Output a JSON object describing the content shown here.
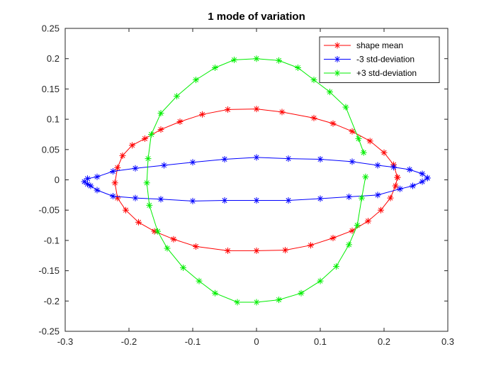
{
  "chart_data": {
    "type": "line",
    "title": "1 mode of variation",
    "xlabel": "",
    "ylabel": "",
    "xlim": [
      -0.3,
      0.3
    ],
    "ylim": [
      -0.25,
      0.25
    ],
    "x_ticks": [
      -0.3,
      -0.2,
      -0.1,
      0,
      0.1,
      0.2,
      0.3
    ],
    "x_tick_labels": [
      "-0.3",
      "-0.2",
      "-0.1",
      "0",
      "0.1",
      "0.2",
      "0.3"
    ],
    "y_ticks": [
      -0.25,
      -0.2,
      -0.15,
      -0.1,
      -0.05,
      0,
      0.05,
      0.1,
      0.15,
      0.2,
      0.25
    ],
    "y_tick_labels": [
      "-0.25",
      "-0.2",
      "-0.15",
      "-0.1",
      "-0.05",
      "0",
      "0.05",
      "0.1",
      "0.15",
      "0.2",
      "0.25"
    ],
    "grid": false,
    "legend_position": "top-right",
    "marker": "asterisk",
    "series": [
      {
        "name": "shape mean",
        "color": "#ff0000",
        "points": [
          [
            0.221,
            0.004
          ],
          [
            0.215,
            0.025
          ],
          [
            0.2,
            0.045
          ],
          [
            0.178,
            0.064
          ],
          [
            0.15,
            0.08
          ],
          [
            0.12,
            0.093
          ],
          [
            0.09,
            0.102
          ],
          [
            0.04,
            0.112
          ],
          [
            0,
            0.117
          ],
          [
            -0.045,
            0.116
          ],
          [
            -0.085,
            0.108
          ],
          [
            -0.12,
            0.096
          ],
          [
            -0.15,
            0.083
          ],
          [
            -0.175,
            0.068
          ],
          [
            -0.195,
            0.057
          ],
          [
            -0.21,
            0.04
          ],
          [
            -0.218,
            0.02
          ],
          [
            -0.222,
            -0.005
          ],
          [
            -0.218,
            -0.03
          ],
          [
            -0.205,
            -0.05
          ],
          [
            -0.185,
            -0.07
          ],
          [
            -0.16,
            -0.085
          ],
          [
            -0.13,
            -0.098
          ],
          [
            -0.095,
            -0.11
          ],
          [
            -0.045,
            -0.117
          ],
          [
            0,
            -0.117
          ],
          [
            0.045,
            -0.116
          ],
          [
            0.085,
            -0.108
          ],
          [
            0.12,
            -0.096
          ],
          [
            0.15,
            -0.084
          ],
          [
            0.175,
            -0.068
          ],
          [
            0.195,
            -0.05
          ],
          [
            0.21,
            -0.03
          ],
          [
            0.218,
            -0.01
          ],
          [
            0.221,
            0.004
          ]
        ]
      },
      {
        "name": "-3 std-deviation",
        "color": "#0000ff",
        "points": [
          [
            0.268,
            0.003
          ],
          [
            0.26,
            0.01
          ],
          [
            0.24,
            0.017
          ],
          [
            0.215,
            0.021
          ],
          [
            0.19,
            0.024
          ],
          [
            0.15,
            0.03
          ],
          [
            0.1,
            0.034
          ],
          [
            0.05,
            0.035
          ],
          [
            0,
            0.037
          ],
          [
            -0.05,
            0.034
          ],
          [
            -0.1,
            0.029
          ],
          [
            -0.145,
            0.024
          ],
          [
            -0.19,
            0.019
          ],
          [
            -0.225,
            0.014
          ],
          [
            -0.25,
            0.005
          ],
          [
            -0.265,
            0.002
          ],
          [
            -0.27,
            -0.003
          ],
          [
            -0.265,
            -0.007
          ],
          [
            -0.26,
            -0.01
          ],
          [
            -0.25,
            -0.017
          ],
          [
            -0.225,
            -0.027
          ],
          [
            -0.19,
            -0.03
          ],
          [
            -0.15,
            -0.032
          ],
          [
            -0.1,
            -0.035
          ],
          [
            -0.05,
            -0.034
          ],
          [
            0,
            -0.034
          ],
          [
            0.05,
            -0.034
          ],
          [
            0.1,
            -0.031
          ],
          [
            0.145,
            -0.028
          ],
          [
            0.19,
            -0.025
          ],
          [
            0.225,
            -0.015
          ],
          [
            0.245,
            -0.01
          ],
          [
            0.26,
            -0.003
          ],
          [
            0.268,
            0.003
          ]
        ]
      },
      {
        "name": "+3 std-deviation",
        "color": "#00ee00",
        "points": [
          [
            0.168,
            0.045
          ],
          [
            0.16,
            0.068
          ],
          [
            0.14,
            0.12
          ],
          [
            0.115,
            0.145
          ],
          [
            0.09,
            0.165
          ],
          [
            0.065,
            0.185
          ],
          [
            0.035,
            0.197
          ],
          [
            0,
            0.2
          ],
          [
            -0.035,
            0.198
          ],
          [
            -0.065,
            0.185
          ],
          [
            -0.095,
            0.165
          ],
          [
            -0.125,
            0.138
          ],
          [
            -0.15,
            0.11
          ],
          [
            -0.165,
            0.075
          ],
          [
            -0.17,
            0.035
          ],
          [
            -0.172,
            -0.005
          ],
          [
            -0.168,
            -0.042
          ],
          [
            -0.155,
            -0.085
          ],
          [
            -0.14,
            -0.113
          ],
          [
            -0.115,
            -0.145
          ],
          [
            -0.09,
            -0.167
          ],
          [
            -0.065,
            -0.187
          ],
          [
            -0.03,
            -0.202
          ],
          [
            0,
            -0.202
          ],
          [
            0.035,
            -0.198
          ],
          [
            0.07,
            -0.187
          ],
          [
            0.1,
            -0.167
          ],
          [
            0.125,
            -0.143
          ],
          [
            0.145,
            -0.107
          ],
          [
            0.158,
            -0.075
          ],
          [
            0.165,
            -0.03
          ],
          [
            0.171,
            0.005
          ]
        ]
      }
    ]
  }
}
